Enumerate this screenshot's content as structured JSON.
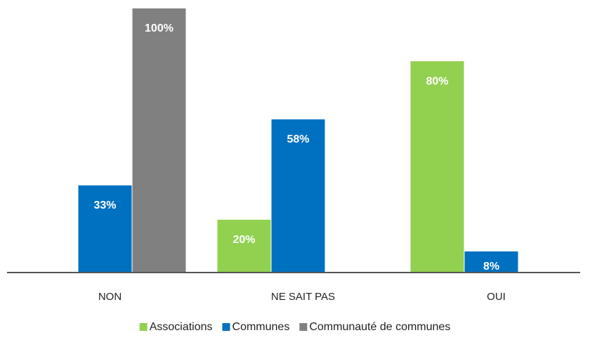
{
  "chart_data": {
    "type": "bar",
    "categories": [
      "NON",
      "NE SAIT PAS",
      "OUI"
    ],
    "series": [
      {
        "name": "Associations",
        "color": "#92d050",
        "values": [
          null,
          20,
          80
        ],
        "value_labels": [
          null,
          "20%",
          "80%"
        ]
      },
      {
        "name": "Communes",
        "color": "#0070c0",
        "values": [
          33,
          58,
          8
        ],
        "value_labels": [
          "33%",
          "58%",
          "8%"
        ]
      },
      {
        "name": "Communauté de communes",
        "color": "#808080",
        "values": [
          100,
          null,
          null
        ],
        "value_labels": [
          "100%",
          null,
          null
        ]
      }
    ],
    "ylim": [
      0,
      100
    ],
    "legend": "bottom"
  }
}
